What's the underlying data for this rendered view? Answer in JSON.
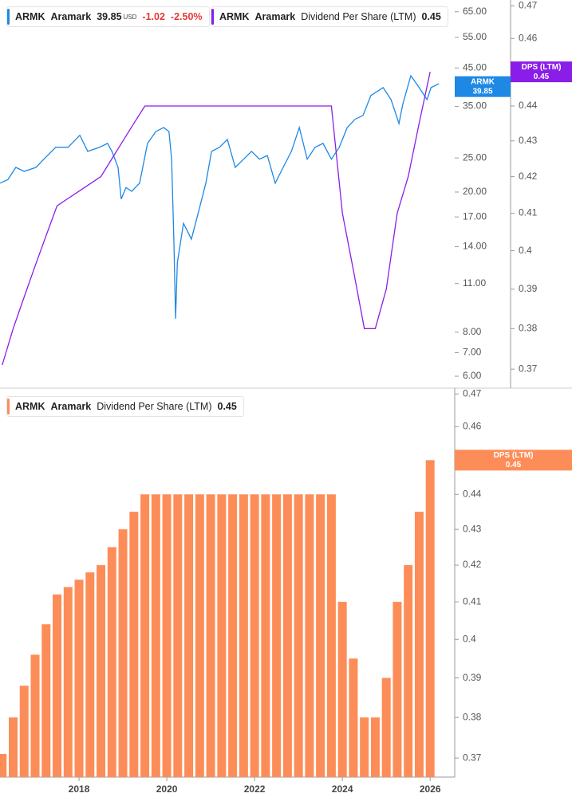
{
  "chart_data": [
    {
      "type": "line",
      "legends": [
        {
          "ticker": "ARMK",
          "last_value": 39.85,
          "currency": "USD",
          "change": -1.02,
          "change_pct": {
            "value": -2.5,
            "label": "-2.50%"
          }
        },
        {
          "ticker": "ARMK",
          "company": "Aramark",
          "last_value": 0.45
        }
      ],
      "badge_label": "DPS (LTM)",
      "log_scale": true,
      "xlim": [
        2016.2,
        2026.56
      ],
      "ylim": [
        5.55,
        70.2
      ],
      "yticks": [
        {
          "value": 6,
          "label": "6.00"
        },
        {
          "value": 7,
          "label": "7.00"
        },
        {
          "value": 8,
          "label": "8.00"
        },
        {
          "value": 11,
          "label": "11.00"
        },
        {
          "value": 14,
          "label": "14.00"
        },
        {
          "value": 17,
          "label": "17.00"
        },
        {
          "value": 20,
          "label": "20.00"
        },
        {
          "value": 25,
          "label": "25.00"
        },
        {
          "value": 35,
          "label": "35.00"
        },
        {
          "value": 45,
          "label": "45.00"
        },
        {
          "value": 55,
          "label": "55.00"
        },
        {
          "value": 65,
          "label": "65.00"
        }
      ],
      "y2lim": [
        0.3654,
        0.4718
      ],
      "y2ticks": [
        0.37,
        0.38,
        0.39,
        0.4,
        0.41,
        0.42,
        0.43,
        0.44,
        0.45,
        0.46,
        0.47
      ],
      "series": [
        {
          "name": "Aramark",
          "color": "#1e88e5",
          "x": [
            2016.2,
            2016.38,
            2016.56,
            2016.75,
            2017.02,
            2017.2,
            2017.47,
            2017.75,
            2018.02,
            2018.2,
            2018.47,
            2018.65,
            2018.75,
            2018.89,
            2018.96,
            2019.07,
            2019.2,
            2019.38,
            2019.56,
            2019.75,
            2019.93,
            2020.05,
            2020.11,
            2020.16,
            2020.2,
            2020.24,
            2020.38,
            2020.56,
            2020.75,
            2020.89,
            2021.02,
            2021.2,
            2021.38,
            2021.56,
            2021.75,
            2021.93,
            2022.11,
            2022.29,
            2022.47,
            2022.65,
            2022.84,
            2023.02,
            2023.2,
            2023.38,
            2023.56,
            2023.75,
            2023.93,
            2024.11,
            2024.29,
            2024.47,
            2024.65,
            2024.93,
            2025.11,
            2025.29,
            2025.38,
            2025.56,
            2025.75,
            2025.93,
            2026.02,
            2026.2
          ],
          "values": [
            21.2,
            21.7,
            23.5,
            22.9,
            23.5,
            24.8,
            26.8,
            26.8,
            29.0,
            26.1,
            26.8,
            27.5,
            26.1,
            23.5,
            19.1,
            20.6,
            20.1,
            21.2,
            27.5,
            29.7,
            30.5,
            29.7,
            24.8,
            14.7,
            8.74,
            12.6,
            16.3,
            14.7,
            18.1,
            21.2,
            26.1,
            26.8,
            28.2,
            23.5,
            24.8,
            26.1,
            24.8,
            25.4,
            21.2,
            23.5,
            26.1,
            30.5,
            24.8,
            26.8,
            27.5,
            24.8,
            26.8,
            30.5,
            32.2,
            33.0,
            37.6,
            39.6,
            36.6,
            31.3,
            35.7,
            42.8,
            39.6,
            36.6,
            39.6,
            40.6
          ]
        },
        {
          "name": "Dividend Per Share (LTM)",
          "color": "#8a1ee8",
          "axis": "y2",
          "x": [
            2016.25,
            2016.5,
            2016.75,
            2017.0,
            2017.25,
            2017.5,
            2017.75,
            2018.0,
            2018.25,
            2018.5,
            2018.75,
            2019.0,
            2019.25,
            2019.5,
            2023.75,
            2024.0,
            2024.25,
            2024.5,
            2024.75,
            2025.0,
            2025.25,
            2025.5,
            2025.75,
            2026.0
          ],
          "values": [
            0.371,
            0.38,
            0.388,
            0.396,
            0.404,
            0.412,
            0.414,
            0.416,
            0.418,
            0.42,
            0.425,
            0.43,
            0.435,
            0.44,
            0.44,
            0.41,
            0.395,
            0.38,
            0.38,
            0.39,
            0.41,
            0.42,
            0.435,
            0.45
          ]
        }
      ]
    },
    {
      "type": "bar",
      "legend": {
        "ticker": "ARMK",
        "company": "Aramark",
        "name": "Dividend Per Share (LTM)",
        "last_value": 0.45
      },
      "badge_label": "DPS (LTM)",
      "color": "#fd8d58",
      "log_scale": true,
      "xlim": [
        2016.2,
        2026.56
      ],
      "xticks": [
        2018,
        2020,
        2022,
        2024,
        2026
      ],
      "ylim": [
        0.3654,
        0.4718
      ],
      "yticks": [
        0.37,
        0.38,
        0.39,
        0.4,
        0.41,
        0.42,
        0.43,
        0.44,
        0.45,
        0.46,
        0.47
      ],
      "x": [
        2016.25,
        2016.5,
        2016.75,
        2017.0,
        2017.25,
        2017.5,
        2017.75,
        2018.0,
        2018.25,
        2018.5,
        2018.75,
        2019.0,
        2019.25,
        2019.5,
        2019.75,
        2020.0,
        2020.25,
        2020.5,
        2020.75,
        2021.0,
        2021.25,
        2021.5,
        2021.75,
        2022.0,
        2022.25,
        2022.5,
        2022.75,
        2023.0,
        2023.25,
        2023.5,
        2023.75,
        2024.0,
        2024.25,
        2024.5,
        2024.75,
        2025.0,
        2025.25,
        2025.5,
        2025.75,
        2026.0
      ],
      "values": [
        0.371,
        0.38,
        0.388,
        0.396,
        0.404,
        0.412,
        0.414,
        0.416,
        0.418,
        0.42,
        0.425,
        0.43,
        0.435,
        0.44,
        0.44,
        0.44,
        0.44,
        0.44,
        0.44,
        0.44,
        0.44,
        0.44,
        0.44,
        0.44,
        0.44,
        0.44,
        0.44,
        0.44,
        0.44,
        0.44,
        0.44,
        0.41,
        0.395,
        0.38,
        0.38,
        0.39,
        0.41,
        0.42,
        0.435,
        0.45
      ]
    }
  ]
}
